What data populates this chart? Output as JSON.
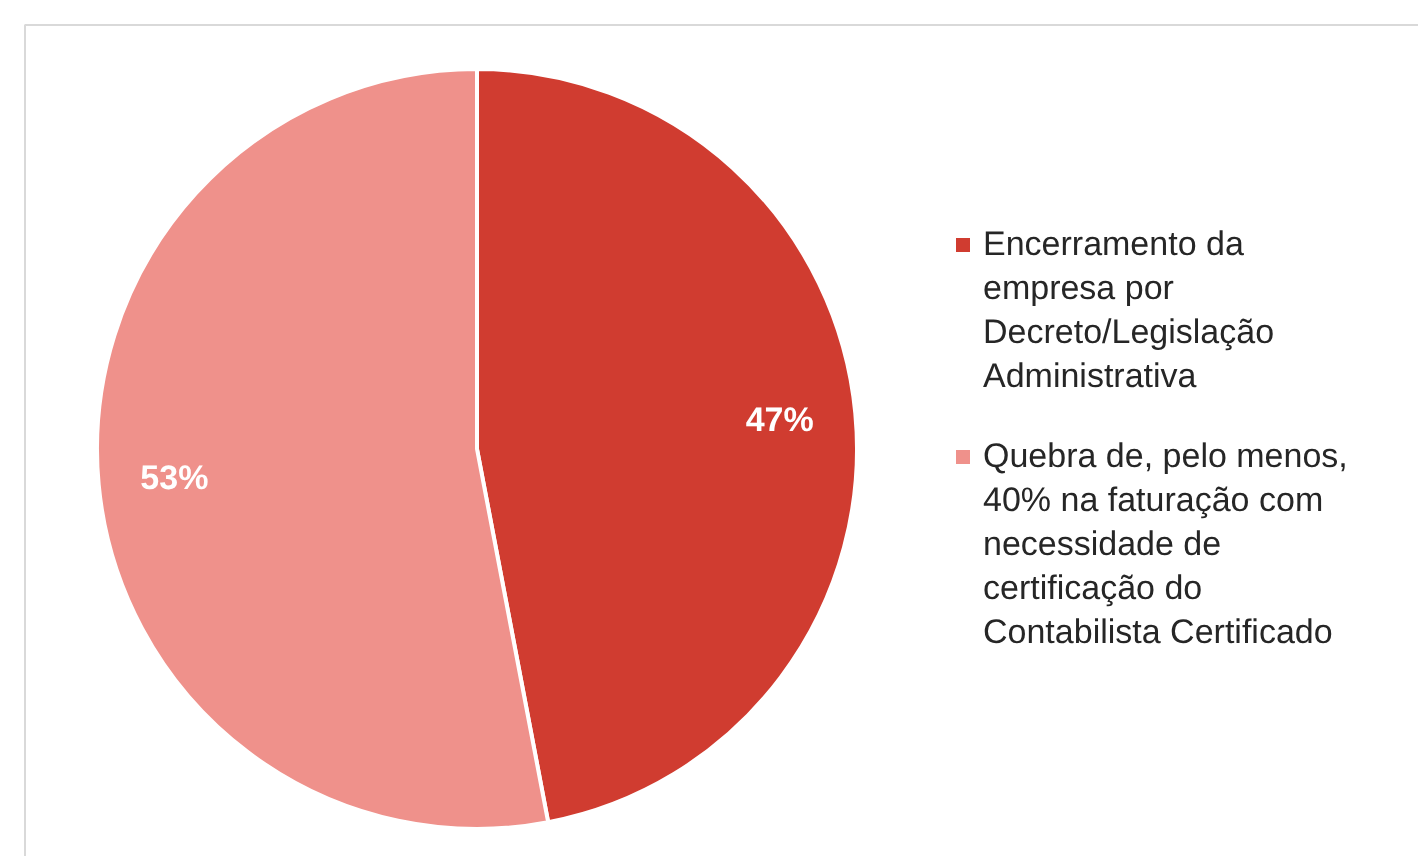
{
  "chart_data": {
    "type": "pie",
    "categories": [
      "Encerramento da empresa por Decreto/Legislação Administrativa",
      "Quebra de, pelo menos, 40% na faturação com necessidade de certificação do Contabilista Certificado"
    ],
    "values": [
      47,
      53
    ],
    "colors": [
      "#d03c30",
      "#ef918b"
    ],
    "value_labels": [
      "47%",
      "53%"
    ],
    "legend": "right"
  }
}
